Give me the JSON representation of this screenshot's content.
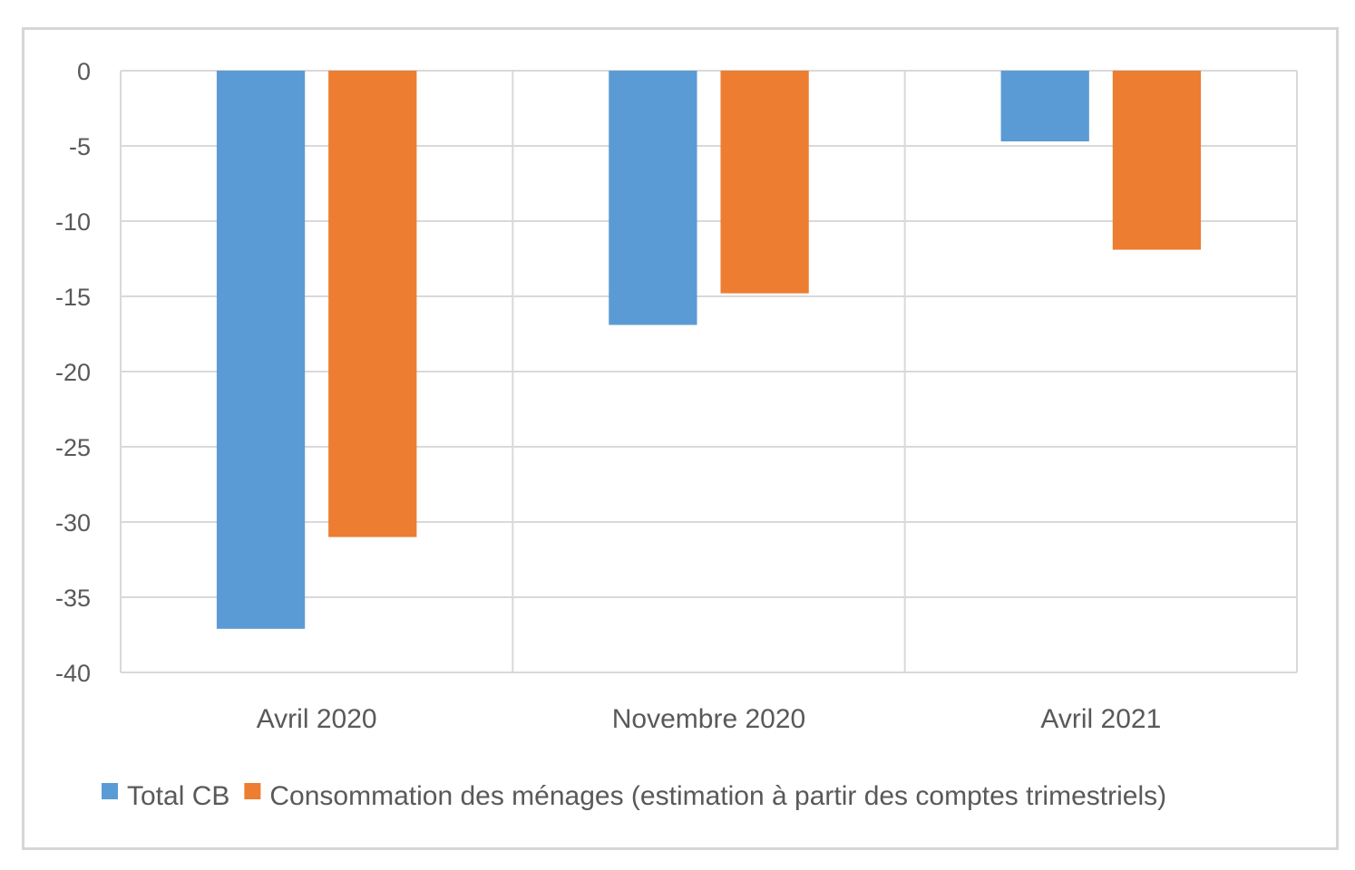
{
  "chart_data": {
    "type": "bar",
    "title": "",
    "xlabel": "",
    "ylabel": "",
    "categories": [
      "Avril 2020",
      "Novembre 2020",
      "Avril 2021"
    ],
    "series": [
      {
        "name": "Total CB",
        "color": "#5b9bd5",
        "values": [
          -37.1,
          -16.9,
          -4.7
        ]
      },
      {
        "name": "Consommation des ménages (estimation à partir des comptes trimestriels)",
        "color": "#ed7d31",
        "values": [
          -31.0,
          -14.8,
          -11.9
        ]
      }
    ],
    "ylim": [
      -40,
      0
    ],
    "yticks": [
      0,
      -5,
      -10,
      -15,
      -20,
      -25,
      -30,
      -35,
      -40
    ],
    "ytick_labels": [
      "0",
      "-5",
      "-10",
      "-15",
      "-20",
      "-25",
      "-30",
      "-35",
      "-40"
    ],
    "grid": true,
    "legend_position": "bottom"
  }
}
